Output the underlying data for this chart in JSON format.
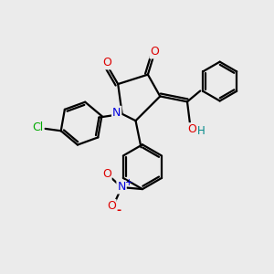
{
  "background_color": "#ebebeb",
  "bond_color": "#000000",
  "atom_colors": {
    "N": "#0000dd",
    "O": "#dd0000",
    "Cl": "#00aa00",
    "C": "#000000",
    "H": "#008888"
  },
  "figsize": [
    3.0,
    3.0
  ],
  "dpi": 100
}
